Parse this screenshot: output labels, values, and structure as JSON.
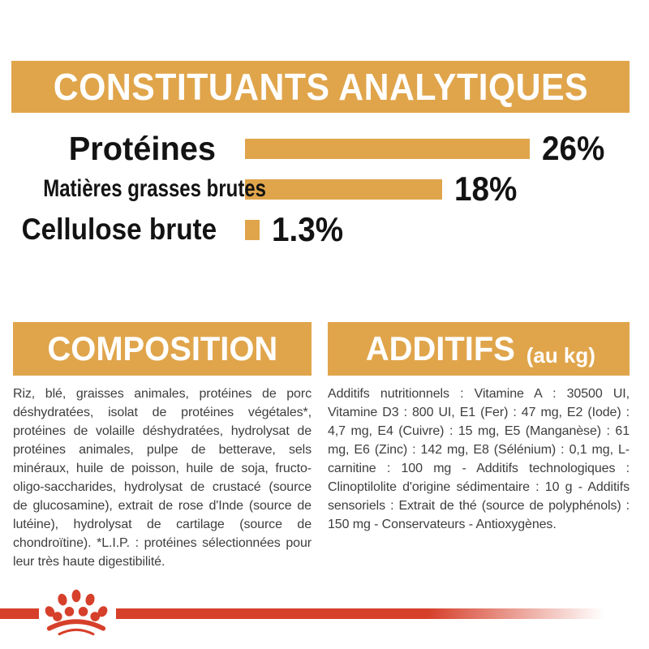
{
  "banner": {
    "title": "CONSTITUANTS ANALYTIQUES"
  },
  "chart_data": {
    "type": "bar",
    "orientation": "horizontal",
    "title": "CONSTITUANTS ANALYTIQUES",
    "categories": [
      "Protéines",
      "Matières grasses brutes",
      "Cellulose brute"
    ],
    "values": [
      26,
      18,
      1.3
    ],
    "value_labels": [
      "26%",
      "18%",
      "1.3%"
    ],
    "unit": "%",
    "xlim": [
      0,
      27
    ],
    "grid": false,
    "legend": "none",
    "bar_color": "#E0A54B",
    "label_color": "#131313"
  },
  "composition": {
    "heading": "COMPOSITION",
    "body": "Riz, blé, graisses animales, protéines de porc déshydratées, isolat de protéines végétales*, protéines de volaille déshydratées, hydrolysat de protéines animales, pulpe de betterave, sels minéraux, huile de poisson, huile de soja, fructo-oligo-saccharides, hydrolysat de crustacé (source de glucosamine), extrait de rose d'Inde (source de lutéine), hydrolysat de cartilage (source de chondroïtine). *L.I.P. : protéines sélectionnées pour leur très haute digestibilité."
  },
  "additives": {
    "heading": "ADDITIFS",
    "heading_suffix": "(au kg)",
    "body": "Additifs nutritionnels : Vitamine A : 30500 UI, Vitamine D3 : 800 UI, E1 (Fer) : 47 mg, E2 (Iode) : 4,7 mg, E4 (Cuivre) : 15 mg, E5 (Manganèse) : 61 mg, E6 (Zinc) : 142 mg, E8 (Sélénium) : 0,1 mg, L-carnitine : 100 mg - Additifs technologiques : Clinoptilolite d'origine sédimentaire : 10 g - Additifs sensoriels : Extrait de thé (source de polyphénols) : 150 mg - Conservateurs - Antioxygènes."
  },
  "footer": {
    "logo": "royal-canin-crown-paw"
  },
  "colors": {
    "accent_orange": "#E0A54B",
    "brand_red": "#D6402B",
    "heading_text": "#FFFFFF",
    "body_text": "#3D3D3D"
  }
}
